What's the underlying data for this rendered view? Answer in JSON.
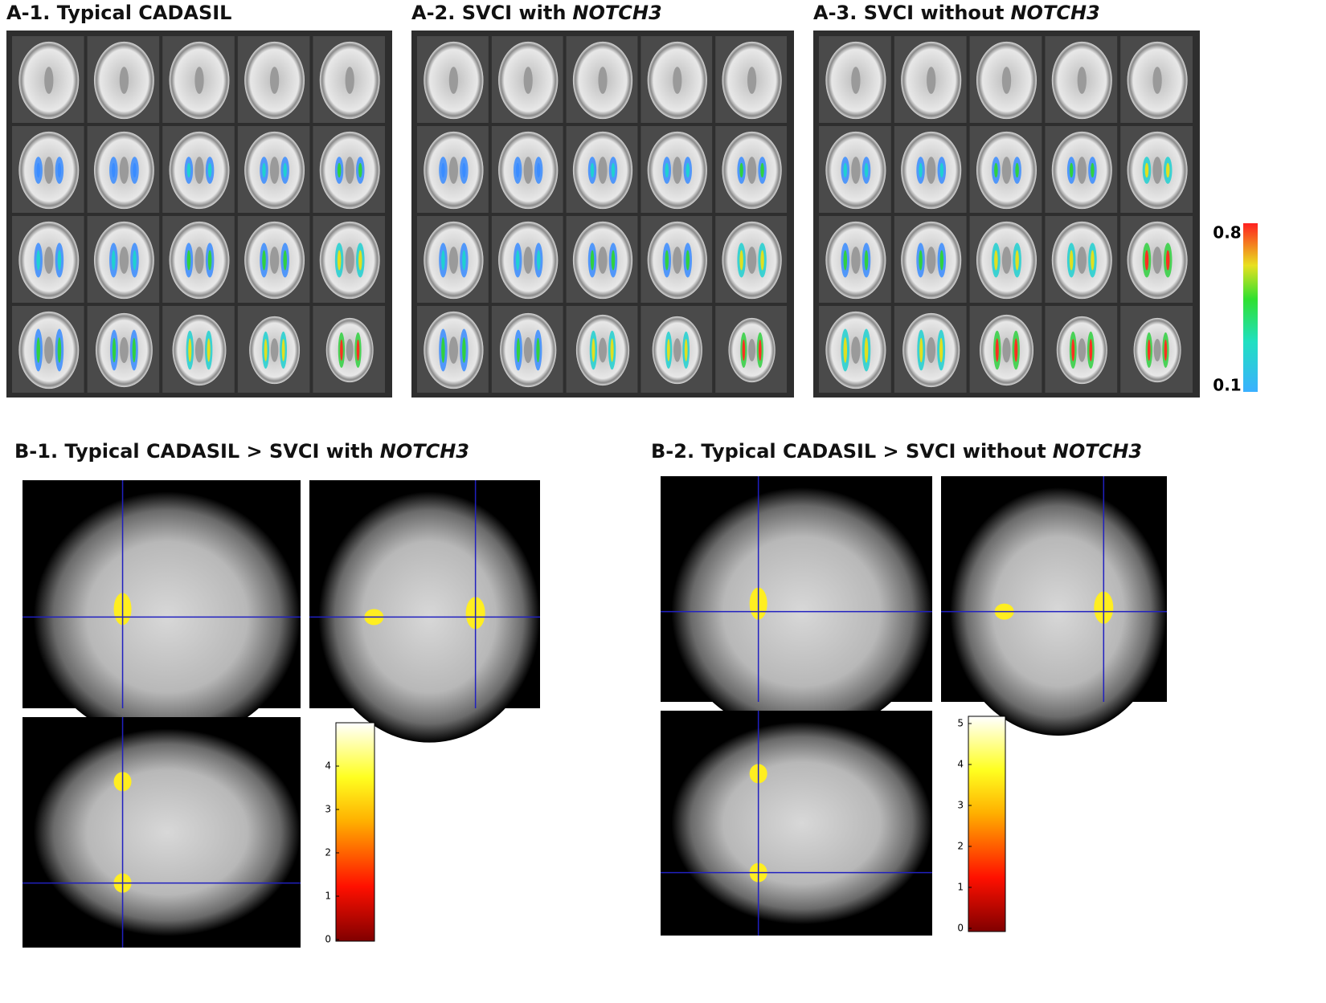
{
  "panel_a": {
    "titles": [
      {
        "label": "A-1. Typical CADASIL"
      },
      {
        "label": "A-2. SVCI with",
        "gene": "NOTCH3"
      },
      {
        "label": "A-3. SVCI without",
        "gene": "NOTCH3"
      }
    ],
    "colorbar": {
      "max": "0.8",
      "min": "0.1"
    }
  },
  "panel_b": [
    {
      "label": "B-1. Typical CADASIL > SVCI with",
      "gene": "NOTCH3",
      "ticks": [
        0,
        1,
        2,
        3,
        4
      ]
    },
    {
      "label": "B-2. Typical CADASIL > SVCI without",
      "gene": "NOTCH3",
      "ticks": [
        0,
        1,
        2,
        3,
        4,
        5
      ]
    }
  ]
}
